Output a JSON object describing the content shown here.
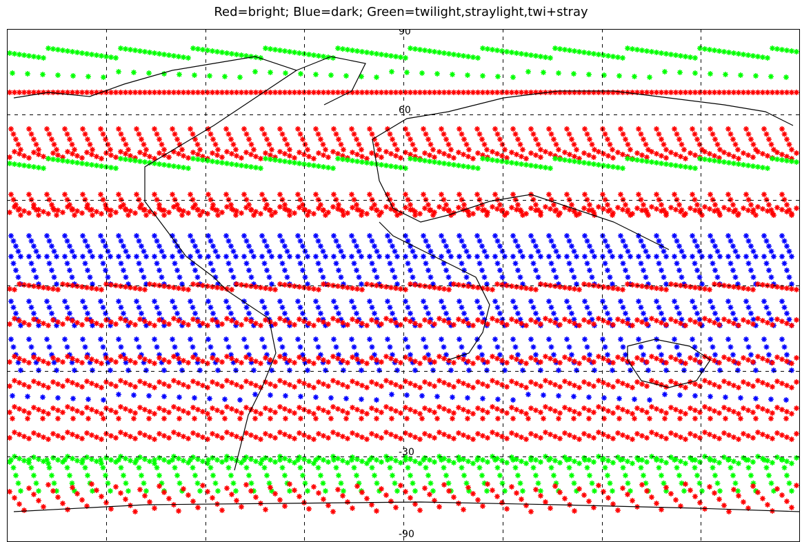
{
  "title": "Red=bright; Blue=dark; Green=twilight,straylight,twi+stray",
  "map": {
    "projection": "cylindrical-equidistant",
    "continents_color": "#000000",
    "grid_line_style": "dashed",
    "grid_color": "#000000",
    "lat_labels_visible": [
      "90",
      "60",
      "-30",
      "-90"
    ],
    "lon_grid_count": 8
  },
  "legend_colors": {
    "bright": "#ff0000",
    "dark": "#0000ff",
    "twilight": "#00ff00"
  },
  "bands": [
    {
      "kind": "twilight",
      "style": "dense-row"
    },
    {
      "kind": "twilight",
      "style": "sparse-row"
    },
    {
      "kind": "bright",
      "style": "dense-row"
    },
    {
      "kind": "bright",
      "style": "diagonal"
    },
    {
      "kind": "bright",
      "style": "dense-row"
    },
    {
      "kind": "twilight",
      "style": "dense-row"
    },
    {
      "kind": "bright",
      "style": "diagonal"
    },
    {
      "kind": "bright",
      "style": "dense-row"
    },
    {
      "kind": "dark",
      "style": "diagonal"
    },
    {
      "kind": "dark",
      "style": "diagonal"
    },
    {
      "kind": "bright",
      "style": "dense-row"
    },
    {
      "kind": "dark",
      "style": "diagonal"
    },
    {
      "kind": "bright",
      "style": "dense-row"
    },
    {
      "kind": "dark",
      "style": "diagonal"
    },
    {
      "kind": "bright",
      "style": "dense-row"
    },
    {
      "kind": "bright",
      "style": "dense-row"
    },
    {
      "kind": "dark",
      "style": "sparse-row"
    },
    {
      "kind": "bright",
      "style": "dense-row"
    },
    {
      "kind": "bright",
      "style": "sparse-row"
    },
    {
      "kind": "bright",
      "style": "dense-row"
    },
    {
      "kind": "twilight",
      "style": "diagonal"
    },
    {
      "kind": "twilight",
      "style": "dense-row"
    },
    {
      "kind": "bright",
      "style": "dense-row"
    }
  ]
}
